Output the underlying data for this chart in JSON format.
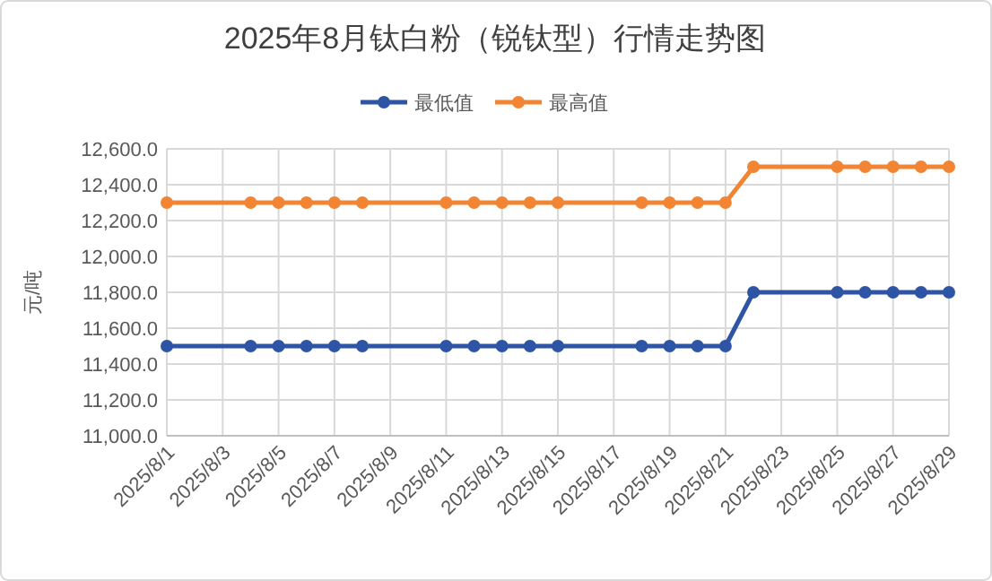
{
  "chart_data": {
    "type": "line",
    "title": "2025年8月钛白粉（锐钛型）行情走势图",
    "ylabel": "元/吨",
    "x": [
      "2025-08-01",
      "2025-08-04",
      "2025-08-05",
      "2025-08-06",
      "2025-08-07",
      "2025-08-08",
      "2025-08-11",
      "2025-08-12",
      "2025-08-13",
      "2025-08-14",
      "2025-08-15",
      "2025-08-18",
      "2025-08-19",
      "2025-08-20",
      "2025-08-21",
      "2025-08-22",
      "2025-08-25",
      "2025-08-26",
      "2025-08-27",
      "2025-08-28",
      "2025-08-29"
    ],
    "series": [
      {
        "name": "最低值",
        "color": "#2e55a5",
        "values": [
          11500,
          11500,
          11500,
          11500,
          11500,
          11500,
          11500,
          11500,
          11500,
          11500,
          11500,
          11500,
          11500,
          11500,
          11500,
          11800,
          11800,
          11800,
          11800,
          11800,
          11800
        ]
      },
      {
        "name": "最高值",
        "color": "#f28533",
        "values": [
          12300,
          12300,
          12300,
          12300,
          12300,
          12300,
          12300,
          12300,
          12300,
          12300,
          12300,
          12300,
          12300,
          12300,
          12300,
          12500,
          12500,
          12500,
          12500,
          12500,
          12500
        ]
      }
    ],
    "xlim": [
      "2025-08-01",
      "2025-08-29"
    ],
    "xticks": [
      {
        "value": "2025-08-01",
        "label": "2025/8/1"
      },
      {
        "value": "2025-08-03",
        "label": "2025/8/3"
      },
      {
        "value": "2025-08-05",
        "label": "2025/8/5"
      },
      {
        "value": "2025-08-07",
        "label": "2025/8/7"
      },
      {
        "value": "2025-08-09",
        "label": "2025/8/9"
      },
      {
        "value": "2025-08-11",
        "label": "2025/8/11"
      },
      {
        "value": "2025-08-13",
        "label": "2025/8/13"
      },
      {
        "value": "2025-08-15",
        "label": "2025/8/15"
      },
      {
        "value": "2025-08-17",
        "label": "2025/8/17"
      },
      {
        "value": "2025-08-19",
        "label": "2025/8/19"
      },
      {
        "value": "2025-08-21",
        "label": "2025/8/21"
      },
      {
        "value": "2025-08-23",
        "label": "2025/8/23"
      },
      {
        "value": "2025-08-25",
        "label": "2025/8/25"
      },
      {
        "value": "2025-08-27",
        "label": "2025/8/27"
      },
      {
        "value": "2025-08-29",
        "label": "2025/8/29"
      }
    ],
    "ylim": [
      11000,
      12600
    ],
    "yticks": [
      {
        "value": 11000,
        "label": "11,000.0"
      },
      {
        "value": 11200,
        "label": "11,200.0"
      },
      {
        "value": 11400,
        "label": "11,400.0"
      },
      {
        "value": 11600,
        "label": "11,600.0"
      },
      {
        "value": 11800,
        "label": "11,800.0"
      },
      {
        "value": 12000,
        "label": "12,000.0"
      },
      {
        "value": 12200,
        "label": "12,200.0"
      },
      {
        "value": 12400,
        "label": "12,400.0"
      },
      {
        "value": 12600,
        "label": "12,600.0"
      }
    ],
    "grid": true,
    "legend": "top",
    "marker": "circle",
    "line_style": "solid"
  }
}
